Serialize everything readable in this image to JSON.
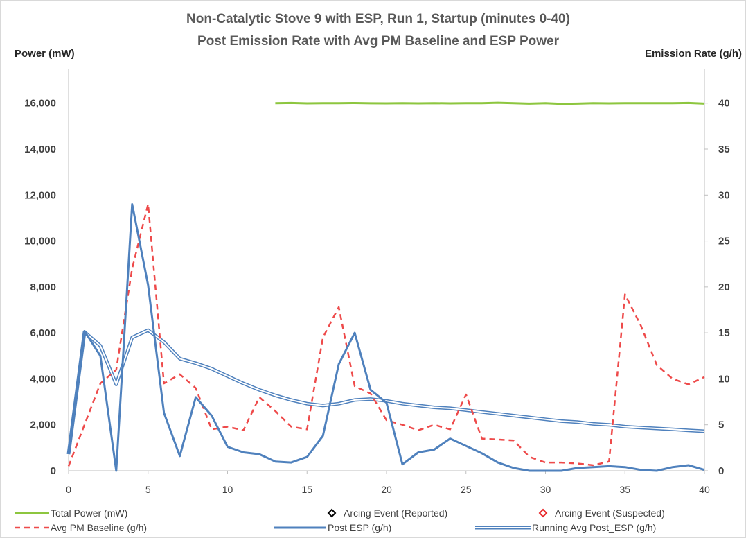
{
  "chart_data": {
    "type": "line",
    "title": "Non-Catalytic Stove 9 with ESP, Run 1, Startup (minutes 0-40)",
    "subtitle": "Post Emission Rate with Avg PM Baseline and ESP Power",
    "y_left_label": "Power (mW)",
    "y_right_label": "Emission Rate (g/h)",
    "x_ticks": [
      "0",
      "5",
      "10",
      "15",
      "20",
      "25",
      "30",
      "35",
      "40"
    ],
    "y_left_ticks": [
      "0",
      "2,000",
      "4,000",
      "6,000",
      "8,000",
      "10,000",
      "12,000",
      "14,000",
      "16,000"
    ],
    "y_right_ticks": [
      "0",
      "5",
      "10",
      "15",
      "20",
      "25",
      "30",
      "35",
      "40"
    ],
    "xlim": [
      0,
      40
    ],
    "y_left_lim": [
      0,
      17500
    ],
    "y_right_lim": [
      0,
      43.75
    ],
    "grid": false,
    "legend_position": "bottom",
    "series": [
      {
        "name": "Total Power (mW)",
        "axis": "left",
        "color": "#8dc63f",
        "style": "solid",
        "x": [
          13,
          14,
          15,
          16,
          17,
          18,
          19,
          20,
          21,
          22,
          23,
          24,
          25,
          26,
          27,
          28,
          29,
          30,
          31,
          32,
          33,
          34,
          35,
          36,
          37,
          38,
          39,
          40
        ],
        "values": [
          16000,
          16010,
          15990,
          16000,
          16000,
          16005,
          15995,
          15990,
          16000,
          15990,
          16000,
          15990,
          16000,
          16000,
          16020,
          16000,
          15980,
          16000,
          15970,
          15980,
          16000,
          15990,
          16000,
          16000,
          16000,
          16000,
          16010,
          15980
        ]
      },
      {
        "name": "Arcing Event (Reported)",
        "axis": "right",
        "color": "#000000",
        "style": "marker",
        "x": [],
        "values": []
      },
      {
        "name": "Arcing Event (Suspected)",
        "axis": "right",
        "color": "#e8282a",
        "style": "marker",
        "x": [],
        "values": []
      },
      {
        "name": "Avg PM Baseline (g/h)",
        "axis": "right",
        "color": "#ee4a4a",
        "style": "dashed",
        "x": [
          0,
          1,
          2,
          3,
          4,
          5,
          6,
          7,
          8,
          9,
          10,
          11,
          12,
          13,
          14,
          15,
          16,
          17,
          18,
          19,
          20,
          21,
          22,
          23,
          24,
          25,
          26,
          27,
          28,
          29,
          30,
          31,
          32,
          33,
          34,
          35,
          36,
          37,
          38,
          39,
          40
        ],
        "values": [
          0.5,
          5,
          9.5,
          11,
          22,
          29,
          9.5,
          10.5,
          9,
          4.5,
          4.8,
          4.4,
          8,
          6.5,
          4.8,
          4.5,
          14.5,
          17.8,
          9.2,
          8.4,
          5.5,
          5,
          4.4,
          5,
          4.5,
          8.3,
          3.5,
          3.4,
          3.3,
          1.5,
          0.9,
          0.9,
          0.8,
          0.6,
          1,
          19.2,
          15.8,
          11.5,
          10,
          9.4,
          10.2
        ]
      },
      {
        "name": "Post ESP (g/h)",
        "axis": "right",
        "color": "#4f81bd",
        "style": "solid",
        "x": [
          0,
          1,
          2,
          3,
          4,
          5,
          6,
          7,
          8,
          9,
          10,
          11,
          12,
          13,
          14,
          15,
          16,
          17,
          18,
          19,
          20,
          21,
          22,
          23,
          24,
          25,
          26,
          27,
          28,
          29,
          30,
          31,
          32,
          33,
          34,
          35,
          36,
          37,
          38,
          39,
          40
        ],
        "values": [
          1.8,
          15.2,
          12.5,
          0,
          29,
          20.2,
          6.3,
          1.6,
          8,
          6,
          2.6,
          2,
          1.8,
          1,
          0.9,
          1.5,
          3.8,
          11.6,
          15,
          8.8,
          7.4,
          0.7,
          2,
          2.3,
          3.5,
          2.7,
          1.9,
          0.9,
          0.3,
          0,
          0,
          0,
          0.3,
          0.4,
          0.5,
          0.4,
          0.1,
          0,
          0.4,
          0.6,
          0.1
        ]
      },
      {
        "name": "Running Avg Post_ESP (g/h)",
        "axis": "right",
        "color": "#4f81bd",
        "style": "double",
        "x": [
          0,
          1,
          2,
          3,
          4,
          5,
          6,
          7,
          8,
          9,
          10,
          11,
          12,
          13,
          14,
          15,
          16,
          17,
          18,
          19,
          20,
          21,
          22,
          23,
          24,
          25,
          26,
          27,
          28,
          29,
          30,
          31,
          32,
          33,
          34,
          35,
          36,
          37,
          38,
          39,
          40
        ],
        "values": [
          1.8,
          15.1,
          13.6,
          9.4,
          14.5,
          15.3,
          14,
          12.2,
          11.7,
          11.1,
          10.3,
          9.5,
          8.8,
          8.2,
          7.7,
          7.3,
          7.1,
          7.3,
          7.7,
          7.8,
          7.6,
          7.3,
          7.1,
          6.9,
          6.8,
          6.6,
          6.4,
          6.2,
          6,
          5.8,
          5.6,
          5.4,
          5.3,
          5.1,
          5,
          4.8,
          4.7,
          4.6,
          4.5,
          4.4,
          4.3
        ]
      }
    ]
  }
}
